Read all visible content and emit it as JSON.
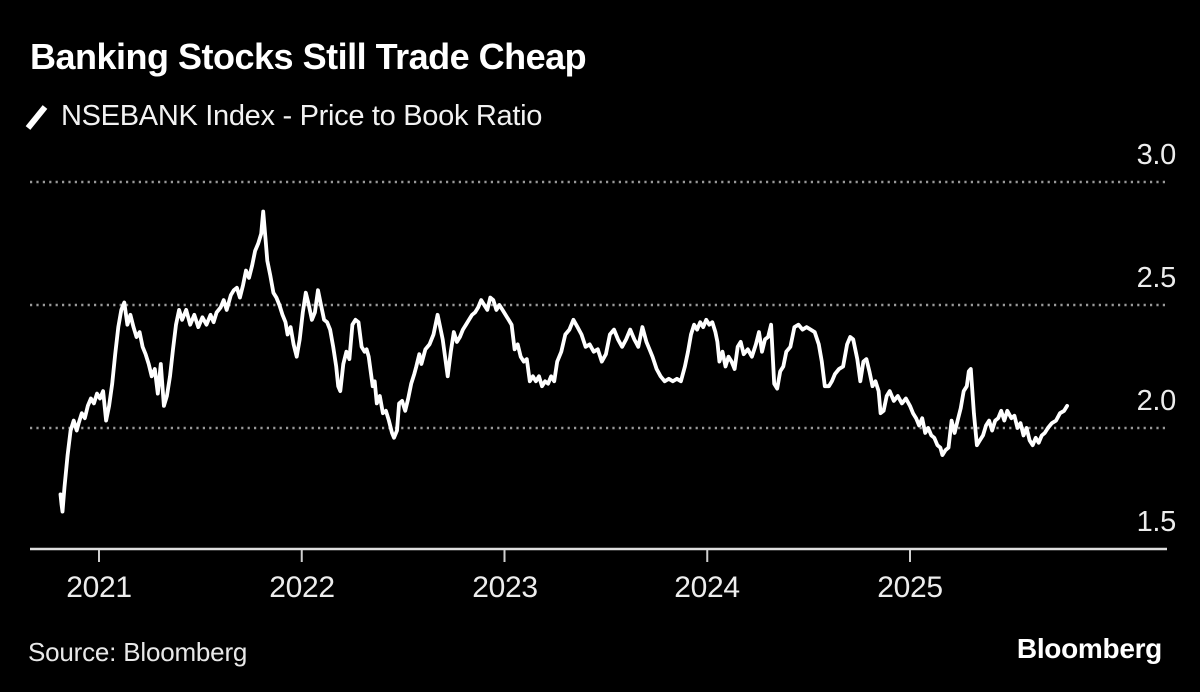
{
  "header": {
    "title": "Banking Stocks Still Trade Cheap"
  },
  "legend": {
    "label": "NSEBANK Index - Price to Book Ratio",
    "marker": "diagonal-slash"
  },
  "footer": {
    "source": "Source: Bloomberg",
    "logo": "Bloomberg"
  },
  "colors": {
    "background": "#000000",
    "line": "#ffffff",
    "grid": "#999999",
    "axis": "#dedede",
    "tick": "#cfcfcf",
    "label_text": "#ededed",
    "title_text": "#ffffff"
  },
  "chart_data": {
    "type": "line",
    "title": "Banking Stocks Still Trade Cheap",
    "series_name": "NSEBANK Index - Price to Book Ratio",
    "xlabel": "",
    "ylabel": "Price to Book Ratio",
    "x_ticks": [
      2021,
      2022,
      2023,
      2024,
      2025
    ],
    "x_tick_labels": [
      "2021",
      "2022",
      "2023",
      "2024",
      "2025"
    ],
    "y_ticks": [
      3.0,
      2.5,
      2.0,
      1.5
    ],
    "y_tick_labels": [
      "3.0",
      "2.5",
      "2.0",
      "1.5"
    ],
    "ylim": [
      1.5,
      3.05
    ],
    "xlim": [
      2020.76,
      2025.88
    ],
    "grid": "dotted-horizontal",
    "legend_position": "top-left",
    "points": [
      [
        2020.81,
        1.73
      ],
      [
        2020.815,
        1.69
      ],
      [
        2020.82,
        1.66
      ],
      [
        2020.83,
        1.76
      ],
      [
        2020.845,
        1.89
      ],
      [
        2020.86,
        1.99
      ],
      [
        2020.875,
        2.03
      ],
      [
        2020.89,
        1.99
      ],
      [
        2020.9,
        2.02
      ],
      [
        2020.915,
        2.06
      ],
      [
        2020.93,
        2.04
      ],
      [
        2020.945,
        2.09
      ],
      [
        2020.96,
        2.12
      ],
      [
        2020.975,
        2.1
      ],
      [
        2020.99,
        2.14
      ],
      [
        2021.005,
        2.12
      ],
      [
        2021.02,
        2.15
      ],
      [
        2021.035,
        2.03
      ],
      [
        2021.05,
        2.09
      ],
      [
        2021.065,
        2.18
      ],
      [
        2021.08,
        2.3
      ],
      [
        2021.095,
        2.41
      ],
      [
        2021.11,
        2.48
      ],
      [
        2021.125,
        2.51
      ],
      [
        2021.14,
        2.42
      ],
      [
        2021.155,
        2.46
      ],
      [
        2021.17,
        2.41
      ],
      [
        2021.185,
        2.37
      ],
      [
        2021.2,
        2.39
      ],
      [
        2021.215,
        2.33
      ],
      [
        2021.23,
        2.3
      ],
      [
        2021.245,
        2.26
      ],
      [
        2021.26,
        2.21
      ],
      [
        2021.275,
        2.24
      ],
      [
        2021.29,
        2.14
      ],
      [
        2021.305,
        2.26
      ],
      [
        2021.32,
        2.09
      ],
      [
        2021.335,
        2.13
      ],
      [
        2021.35,
        2.21
      ],
      [
        2021.365,
        2.32
      ],
      [
        2021.38,
        2.42
      ],
      [
        2021.395,
        2.48
      ],
      [
        2021.41,
        2.44
      ],
      [
        2021.43,
        2.48
      ],
      [
        2021.45,
        2.42
      ],
      [
        2021.47,
        2.46
      ],
      [
        2021.49,
        2.41
      ],
      [
        2021.51,
        2.45
      ],
      [
        2021.53,
        2.42
      ],
      [
        2021.55,
        2.46
      ],
      [
        2021.565,
        2.43
      ],
      [
        2021.58,
        2.47
      ],
      [
        2021.6,
        2.49
      ],
      [
        2021.615,
        2.52
      ],
      [
        2021.63,
        2.48
      ],
      [
        2021.65,
        2.54
      ],
      [
        2021.665,
        2.56
      ],
      [
        2021.68,
        2.57
      ],
      [
        2021.695,
        2.53
      ],
      [
        2021.71,
        2.58
      ],
      [
        2021.725,
        2.64
      ],
      [
        2021.74,
        2.61
      ],
      [
        2021.755,
        2.66
      ],
      [
        2021.77,
        2.72
      ],
      [
        2021.785,
        2.75
      ],
      [
        2021.8,
        2.79
      ],
      [
        2021.81,
        2.88
      ],
      [
        2021.82,
        2.78
      ],
      [
        2021.83,
        2.68
      ],
      [
        2021.845,
        2.62
      ],
      [
        2021.86,
        2.55
      ],
      [
        2021.875,
        2.53
      ],
      [
        2021.89,
        2.5
      ],
      [
        2021.905,
        2.46
      ],
      [
        2021.92,
        2.43
      ],
      [
        2021.93,
        2.38
      ],
      [
        2021.945,
        2.41
      ],
      [
        2021.96,
        2.34
      ],
      [
        2021.975,
        2.29
      ],
      [
        2021.99,
        2.36
      ],
      [
        2022.005,
        2.47
      ],
      [
        2022.02,
        2.55
      ],
      [
        2022.035,
        2.5
      ],
      [
        2022.05,
        2.44
      ],
      [
        2022.065,
        2.47
      ],
      [
        2022.08,
        2.56
      ],
      [
        2022.095,
        2.5
      ],
      [
        2022.11,
        2.44
      ],
      [
        2022.125,
        2.43
      ],
      [
        2022.14,
        2.4
      ],
      [
        2022.155,
        2.33
      ],
      [
        2022.17,
        2.25
      ],
      [
        2022.18,
        2.17
      ],
      [
        2022.19,
        2.15
      ],
      [
        2022.205,
        2.26
      ],
      [
        2022.22,
        2.31
      ],
      [
        2022.235,
        2.28
      ],
      [
        2022.25,
        2.42
      ],
      [
        2022.265,
        2.44
      ],
      [
        2022.28,
        2.43
      ],
      [
        2022.295,
        2.33
      ],
      [
        2022.31,
        2.31
      ],
      [
        2022.32,
        2.32
      ],
      [
        2022.33,
        2.29
      ],
      [
        2022.35,
        2.17
      ],
      [
        2022.36,
        2.19
      ],
      [
        2022.37,
        2.1
      ],
      [
        2022.385,
        2.13
      ],
      [
        2022.4,
        2.06
      ],
      [
        2022.415,
        2.07
      ],
      [
        2022.43,
        2.03
      ],
      [
        2022.445,
        1.98
      ],
      [
        2022.455,
        1.96
      ],
      [
        2022.47,
        1.99
      ],
      [
        2022.48,
        2.1
      ],
      [
        2022.495,
        2.11
      ],
      [
        2022.51,
        2.07
      ],
      [
        2022.525,
        2.12
      ],
      [
        2022.54,
        2.18
      ],
      [
        2022.555,
        2.22
      ],
      [
        2022.565,
        2.25
      ],
      [
        2022.58,
        2.3
      ],
      [
        2022.59,
        2.26
      ],
      [
        2022.61,
        2.32
      ],
      [
        2022.63,
        2.34
      ],
      [
        2022.65,
        2.38
      ],
      [
        2022.67,
        2.46
      ],
      [
        2022.695,
        2.36
      ],
      [
        2022.72,
        2.21
      ],
      [
        2022.735,
        2.31
      ],
      [
        2022.75,
        2.39
      ],
      [
        2022.765,
        2.35
      ],
      [
        2022.78,
        2.37
      ],
      [
        2022.795,
        2.4
      ],
      [
        2022.81,
        2.42
      ],
      [
        2022.825,
        2.44
      ],
      [
        2022.84,
        2.46
      ],
      [
        2022.855,
        2.47
      ],
      [
        2022.87,
        2.49
      ],
      [
        2022.885,
        2.52
      ],
      [
        2022.9,
        2.5
      ],
      [
        2022.915,
        2.48
      ],
      [
        2022.93,
        2.53
      ],
      [
        2022.945,
        2.52
      ],
      [
        2022.96,
        2.48
      ],
      [
        2022.975,
        2.5
      ],
      [
        2022.99,
        2.48
      ],
      [
        2023.005,
        2.46
      ],
      [
        2023.02,
        2.44
      ],
      [
        2023.035,
        2.42
      ],
      [
        2023.05,
        2.32
      ],
      [
        2023.065,
        2.34
      ],
      [
        2023.08,
        2.29
      ],
      [
        2023.095,
        2.27
      ],
      [
        2023.11,
        2.28
      ],
      [
        2023.125,
        2.19
      ],
      [
        2023.14,
        2.21
      ],
      [
        2023.155,
        2.19
      ],
      [
        2023.17,
        2.21
      ],
      [
        2023.185,
        2.17
      ],
      [
        2023.2,
        2.19
      ],
      [
        2023.215,
        2.18
      ],
      [
        2023.23,
        2.21
      ],
      [
        2023.245,
        2.19
      ],
      [
        2023.26,
        2.27
      ],
      [
        2023.28,
        2.31
      ],
      [
        2023.3,
        2.38
      ],
      [
        2023.32,
        2.4
      ],
      [
        2023.34,
        2.44
      ],
      [
        2023.36,
        2.41
      ],
      [
        2023.38,
        2.38
      ],
      [
        2023.4,
        2.33
      ],
      [
        2023.42,
        2.34
      ],
      [
        2023.44,
        2.31
      ],
      [
        2023.46,
        2.32
      ],
      [
        2023.48,
        2.27
      ],
      [
        2023.5,
        2.3
      ],
      [
        2023.52,
        2.38
      ],
      [
        2023.54,
        2.4
      ],
      [
        2023.56,
        2.36
      ],
      [
        2023.58,
        2.33
      ],
      [
        2023.6,
        2.36
      ],
      [
        2023.62,
        2.4
      ],
      [
        2023.64,
        2.36
      ],
      [
        2023.66,
        2.33
      ],
      [
        2023.68,
        2.41
      ],
      [
        2023.7,
        2.35
      ],
      [
        2023.715,
        2.32
      ],
      [
        2023.73,
        2.29
      ],
      [
        2023.75,
        2.24
      ],
      [
        2023.77,
        2.21
      ],
      [
        2023.79,
        2.19
      ],
      [
        2023.81,
        2.2
      ],
      [
        2023.83,
        2.19
      ],
      [
        2023.85,
        2.2
      ],
      [
        2023.87,
        2.19
      ],
      [
        2023.89,
        2.25
      ],
      [
        2023.905,
        2.31
      ],
      [
        2023.92,
        2.38
      ],
      [
        2023.935,
        2.42
      ],
      [
        2023.95,
        2.4
      ],
      [
        2023.965,
        2.43
      ],
      [
        2023.98,
        2.41
      ],
      [
        2023.995,
        2.44
      ],
      [
        2024.01,
        2.42
      ],
      [
        2024.025,
        2.43
      ],
      [
        2024.04,
        2.39
      ],
      [
        2024.05,
        2.35
      ],
      [
        2024.06,
        2.27
      ],
      [
        2024.075,
        2.31
      ],
      [
        2024.09,
        2.25
      ],
      [
        2024.105,
        2.29
      ],
      [
        2024.12,
        2.27
      ],
      [
        2024.135,
        2.24
      ],
      [
        2024.15,
        2.33
      ],
      [
        2024.165,
        2.35
      ],
      [
        2024.18,
        2.3
      ],
      [
        2024.2,
        2.32
      ],
      [
        2024.22,
        2.29
      ],
      [
        2024.24,
        2.34
      ],
      [
        2024.255,
        2.39
      ],
      [
        2024.27,
        2.31
      ],
      [
        2024.285,
        2.36
      ],
      [
        2024.3,
        2.37
      ],
      [
        2024.315,
        2.42
      ],
      [
        2024.33,
        2.18
      ],
      [
        2024.345,
        2.16
      ],
      [
        2024.36,
        2.23
      ],
      [
        2024.375,
        2.25
      ],
      [
        2024.39,
        2.31
      ],
      [
        2024.41,
        2.33
      ],
      [
        2024.43,
        2.41
      ],
      [
        2024.45,
        2.42
      ],
      [
        2024.47,
        2.4
      ],
      [
        2024.49,
        2.41
      ],
      [
        2024.51,
        2.4
      ],
      [
        2024.53,
        2.39
      ],
      [
        2024.55,
        2.34
      ],
      [
        2024.565,
        2.27
      ],
      [
        2024.58,
        2.17
      ],
      [
        2024.6,
        2.17
      ],
      [
        2024.615,
        2.19
      ],
      [
        2024.63,
        2.22
      ],
      [
        2024.65,
        2.24
      ],
      [
        2024.67,
        2.25
      ],
      [
        2024.69,
        2.34
      ],
      [
        2024.705,
        2.37
      ],
      [
        2024.72,
        2.36
      ],
      [
        2024.74,
        2.28
      ],
      [
        2024.755,
        2.19
      ],
      [
        2024.77,
        2.27
      ],
      [
        2024.785,
        2.28
      ],
      [
        2024.8,
        2.23
      ],
      [
        2024.815,
        2.17
      ],
      [
        2024.83,
        2.19
      ],
      [
        2024.845,
        2.15
      ],
      [
        2024.855,
        2.06
      ],
      [
        2024.87,
        2.07
      ],
      [
        2024.885,
        2.13
      ],
      [
        2024.9,
        2.15
      ],
      [
        2024.92,
        2.11
      ],
      [
        2024.94,
        2.13
      ],
      [
        2024.96,
        2.1
      ],
      [
        2024.98,
        2.12
      ],
      [
        2025.0,
        2.09
      ],
      [
        2025.015,
        2.06
      ],
      [
        2025.03,
        2.04
      ],
      [
        2025.045,
        2.01
      ],
      [
        2025.06,
        2.04
      ],
      [
        2025.075,
        1.98
      ],
      [
        2025.09,
        2.0
      ],
      [
        2025.105,
        1.97
      ],
      [
        2025.12,
        1.96
      ],
      [
        2025.135,
        1.93
      ],
      [
        2025.15,
        1.92
      ],
      [
        2025.16,
        1.89
      ],
      [
        2025.175,
        1.91
      ],
      [
        2025.19,
        1.92
      ],
      [
        2025.205,
        2.03
      ],
      [
        2025.22,
        1.98
      ],
      [
        2025.235,
        2.03
      ],
      [
        2025.25,
        2.08
      ],
      [
        2025.265,
        2.15
      ],
      [
        2025.28,
        2.17
      ],
      [
        2025.29,
        2.23
      ],
      [
        2025.3,
        2.24
      ],
      [
        2025.315,
        2.06
      ],
      [
        2025.33,
        1.93
      ],
      [
        2025.345,
        1.95
      ],
      [
        2025.36,
        1.97
      ],
      [
        2025.375,
        2.01
      ],
      [
        2025.39,
        2.03
      ],
      [
        2025.405,
        1.99
      ],
      [
        2025.42,
        2.03
      ],
      [
        2025.435,
        2.04
      ],
      [
        2025.45,
        2.07
      ],
      [
        2025.465,
        2.03
      ],
      [
        2025.48,
        2.07
      ],
      [
        2025.5,
        2.04
      ],
      [
        2025.515,
        2.05
      ],
      [
        2025.53,
        2.0
      ],
      [
        2025.545,
        2.02
      ],
      [
        2025.56,
        1.97
      ],
      [
        2025.575,
        2.0
      ],
      [
        2025.59,
        1.95
      ],
      [
        2025.605,
        1.93
      ],
      [
        2025.62,
        1.96
      ],
      [
        2025.635,
        1.94
      ],
      [
        2025.65,
        1.97
      ],
      [
        2025.665,
        1.98
      ],
      [
        2025.68,
        2.0
      ],
      [
        2025.7,
        2.02
      ],
      [
        2025.72,
        2.03
      ],
      [
        2025.74,
        2.06
      ],
      [
        2025.76,
        2.07
      ],
      [
        2025.775,
        2.09
      ]
    ]
  },
  "geometry_note": "x tick pixel anchors 99..910, 202.75 px per year; value 3.0 at y=182, 246 px per unit"
}
